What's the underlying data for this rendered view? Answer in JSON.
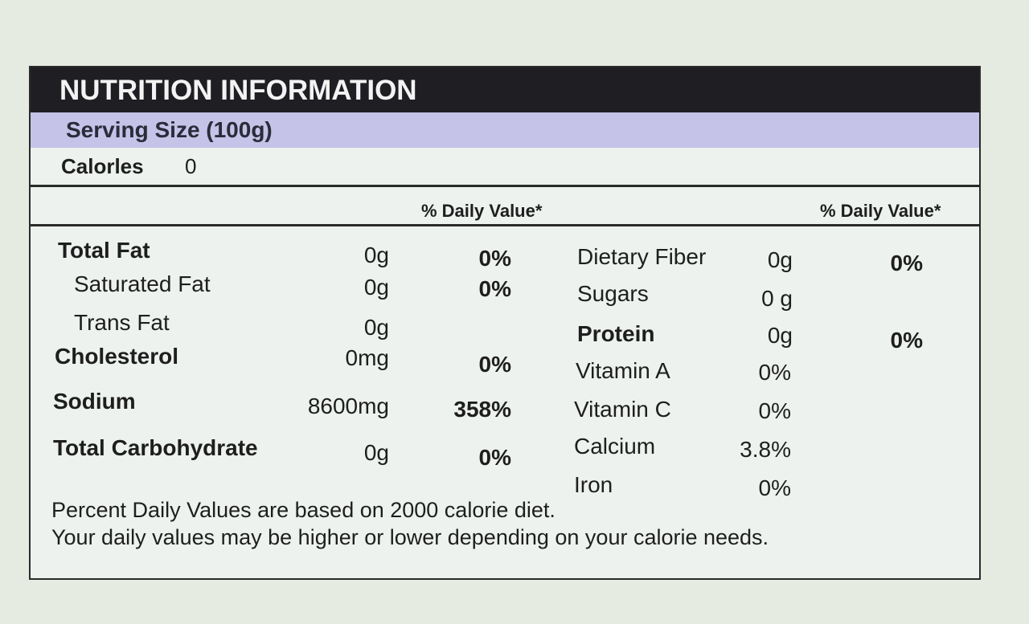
{
  "header": {
    "title": "NUTRITION INFORMATION"
  },
  "serving": {
    "label": "Serving Size (100g)"
  },
  "calories": {
    "label": "Calorles",
    "value": "0"
  },
  "dv_header": {
    "left": "% Daily Value*",
    "right": "% Daily Value*"
  },
  "left_rows": [
    {
      "name": "Total Fat",
      "amount": "0g",
      "dv": "0%"
    },
    {
      "name": "Saturated Fat",
      "amount": "0g",
      "dv": "0%"
    },
    {
      "name": "Trans Fat",
      "amount": "0g",
      "dv": ""
    },
    {
      "name": "Cholesterol",
      "amount": "0mg",
      "dv": "0%"
    },
    {
      "name": "Sodium",
      "amount": "8600mg",
      "dv": "358%"
    },
    {
      "name": "Total Carbohydrate",
      "amount": "0g",
      "dv": "0%"
    }
  ],
  "right_rows": [
    {
      "name": "Dietary Fiber",
      "amount": "0g",
      "dv": "0%"
    },
    {
      "name": "Sugars",
      "amount": "0 g",
      "dv": ""
    },
    {
      "name": "Protein",
      "amount": "0g",
      "dv": "0%"
    },
    {
      "name": "Vitamin A",
      "amount": "0%",
      "dv": ""
    },
    {
      "name": "Vitamin C",
      "amount": "0%",
      "dv": ""
    },
    {
      "name": "Calcium",
      "amount": "3.8%",
      "dv": ""
    },
    {
      "name": "Iron",
      "amount": "0%",
      "dv": ""
    }
  ],
  "footnote": {
    "line1": "Percent Daily Values are based on 2000 calorie diet.",
    "line2": "Your daily values may be higher or lower depending on your calorie needs."
  }
}
